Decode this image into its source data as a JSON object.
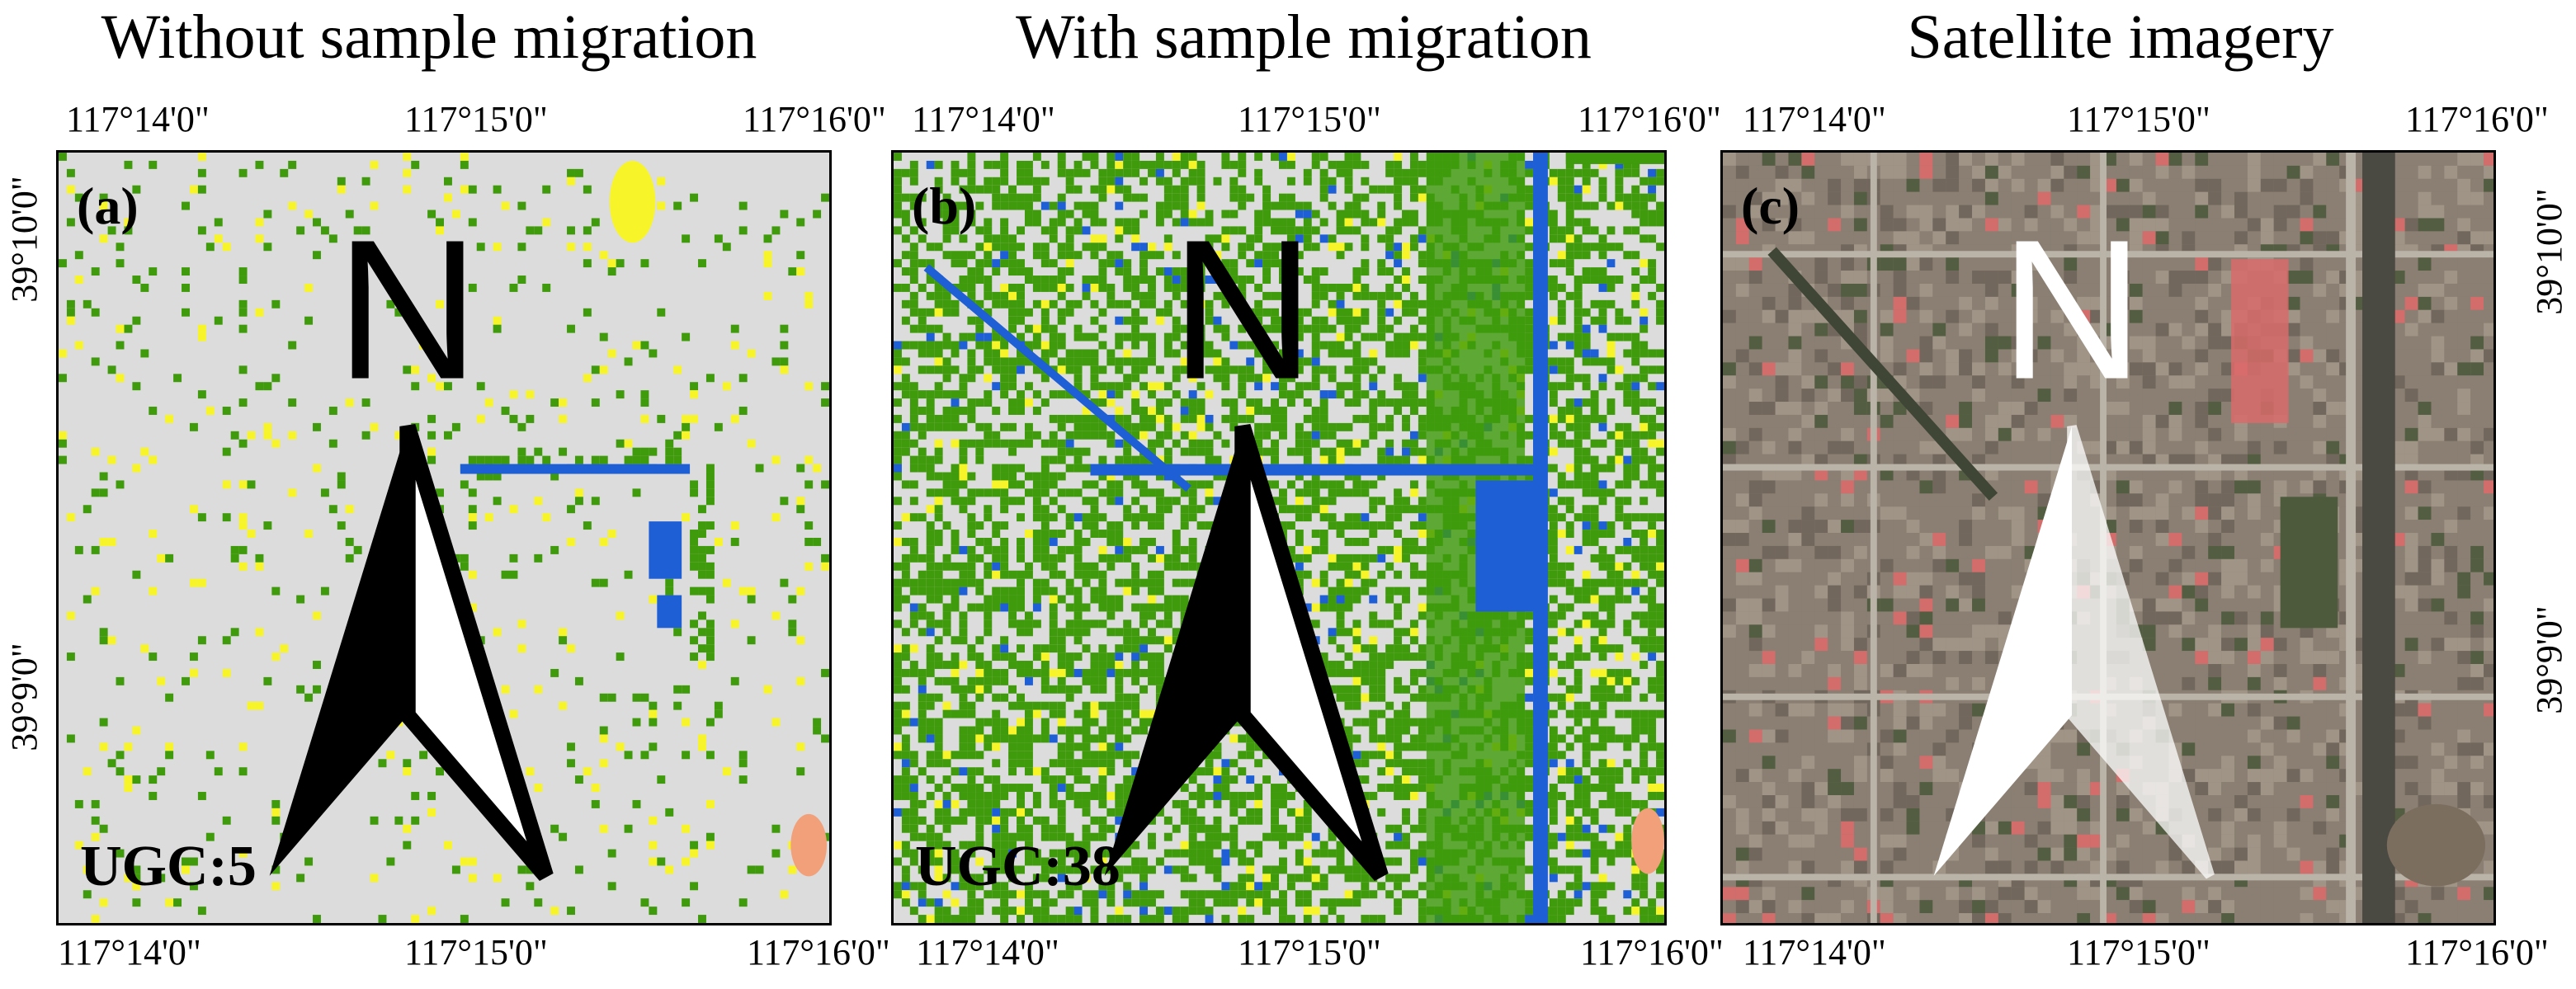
{
  "panels": [
    {
      "title": "Without sample migration",
      "label": "(a)",
      "ugc": "UGC:5",
      "type": "classification-low"
    },
    {
      "title": "With sample migration",
      "label": "(b)",
      "ugc": "UGC:38",
      "type": "classification-high"
    },
    {
      "title": "Satellite imagery",
      "label": "(c)",
      "ugc": "",
      "type": "satellite"
    }
  ],
  "lon_ticks": [
    "117°14'0\"",
    "117°15'0\"",
    "117°16'0\""
  ],
  "lat_ticks": [
    "39°10'0\"",
    "39°9'0\""
  ],
  "north_label": "N",
  "colors": {
    "impervious": "#dcdcdc",
    "green": "#3f9b0b",
    "water": "#1f5fd6",
    "yellow": "#f7f52a",
    "bare": "#f2a07a",
    "sat_urban": "#8a7f72",
    "sat_road": "#b9b3a8",
    "sat_green": "#4d5a3c",
    "sat_roof": "#d96b6b"
  }
}
